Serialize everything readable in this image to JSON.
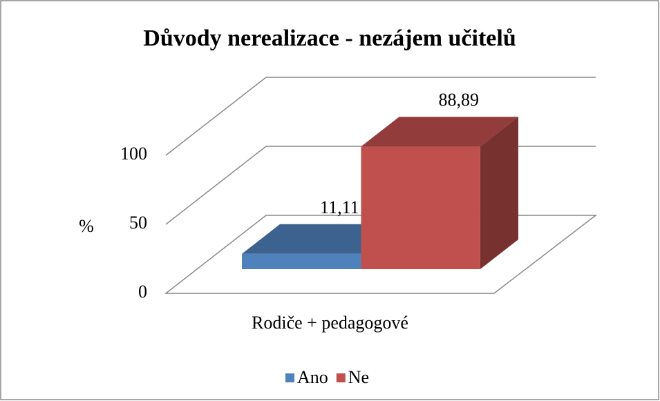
{
  "chart_data": {
    "type": "bar3d",
    "title": "Důvody nerealizace - nezájem učitelů",
    "ylabel": "%",
    "categories": [
      "Rodiče + pedagogové"
    ],
    "series": [
      {
        "name": "Ano",
        "color": "#4f81bd",
        "values": [
          11.11
        ],
        "value_labels": [
          "11,11"
        ]
      },
      {
        "name": "Ne",
        "color": "#c0504d",
        "values": [
          88.89
        ],
        "value_labels": [
          "88,89"
        ]
      }
    ],
    "ylim": [
      0,
      100
    ],
    "yticks": [
      0,
      50,
      100
    ],
    "grid": true,
    "legend": "bottom"
  }
}
